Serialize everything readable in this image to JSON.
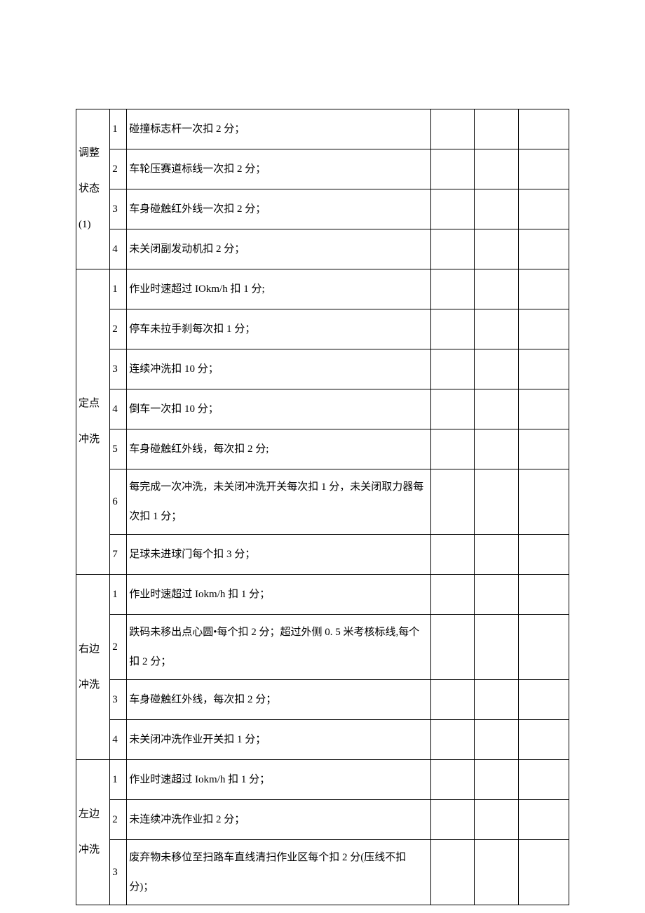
{
  "sections": [
    {
      "category": "调整",
      "category_line2": "状态",
      "category_line3": "(1)",
      "rows": [
        {
          "n": "1",
          "desc": "碰撞标志杆一次扣 2 分；"
        },
        {
          "n": "2",
          "desc": "车轮压赛道标线一次扣 2 分；"
        },
        {
          "n": "3",
          "desc": "车身碰触红外线一次扣 2 分；"
        },
        {
          "n": "4",
          "desc": "未关闭副发动机扣 2 分；"
        }
      ]
    },
    {
      "category": "定点",
      "category_line2": "冲洗",
      "rows": [
        {
          "n": "1",
          "desc": "作业时速超过 IOkm/h 扣 1 分;"
        },
        {
          "n": "2",
          "desc": "停车未拉手刹每次扣 1 分；"
        },
        {
          "n": "3",
          "desc": "连续冲洗扣 10 分；"
        },
        {
          "n": "4",
          "desc": "倒车一次扣 10 分；"
        },
        {
          "n": "5",
          "desc": "车身碰触红外线，每次扣 2 分;"
        },
        {
          "n": "6",
          "desc": "每完成一次冲洗，未关闭冲洗开关每次扣 1 分，未关闭取力器每次扣 1 分；"
        },
        {
          "n": "7",
          "desc": "足球未进球门每个扣 3 分；"
        }
      ]
    },
    {
      "category": "右边",
      "category_line2": "冲洗",
      "rows": [
        {
          "n": "1",
          "desc": "作业时速超过 Iokm/h 扣 1 分；"
        },
        {
          "n": "2",
          "desc": "跌码未移出点心圆•每个扣 2 分；超过外侧 0. 5 米考核标线,每个扣 2 分；"
        },
        {
          "n": "3",
          "desc": "车身碰触红外线，每次扣 2 分；"
        },
        {
          "n": "4",
          "desc": "未关闭冲洗作业开关扣 1 分；"
        }
      ]
    },
    {
      "category": "左边",
      "category_line2": "冲洗",
      "rows": [
        {
          "n": "1",
          "desc": "作业时速超过 Iokm/h 扣 1 分；"
        },
        {
          "n": "2",
          "desc": "未连续冲洗作业扣 2 分；"
        },
        {
          "n": "3",
          "desc": "废弃物未移位至扫路车直线清扫作业区每个扣 2 分(压线不扣分)；"
        }
      ]
    }
  ]
}
